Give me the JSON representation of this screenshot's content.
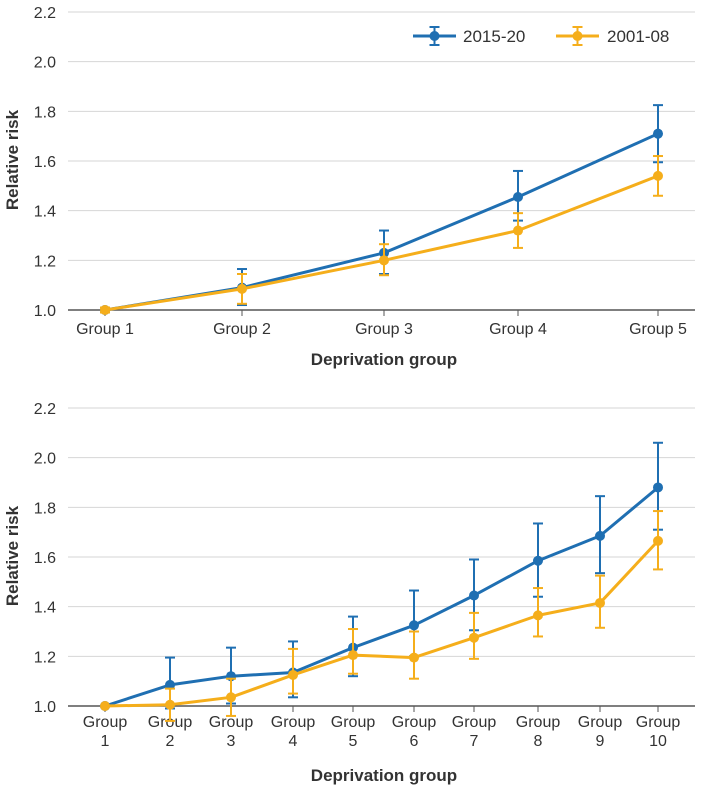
{
  "chart_data": [
    {
      "type": "line",
      "title": "",
      "xlabel": "Deprivation group",
      "ylabel": "Relative risk",
      "ylim": [
        1.0,
        2.2
      ],
      "yticks": [
        "1.0",
        "1.2",
        "1.4",
        "1.6",
        "1.8",
        "2.0",
        "2.2"
      ],
      "categories": [
        [
          "Group 1"
        ],
        [
          "Group 2"
        ],
        [
          "Group 3"
        ],
        [
          "Group 4"
        ],
        [
          "Group 5"
        ]
      ],
      "legend": "top-right",
      "series": [
        {
          "name": "2015-20",
          "color": "#1f6fb2",
          "values": [
            1.0,
            1.09,
            1.23,
            1.455,
            1.71
          ],
          "lower": [
            1.0,
            1.02,
            1.145,
            1.36,
            1.595
          ],
          "upper": [
            1.0,
            1.165,
            1.32,
            1.56,
            1.825
          ]
        },
        {
          "name": "2001-08",
          "color": "#f5ae1b",
          "values": [
            1.0,
            1.085,
            1.2,
            1.32,
            1.54
          ],
          "lower": [
            0.99,
            1.025,
            1.14,
            1.25,
            1.46
          ],
          "upper": [
            1.01,
            1.145,
            1.265,
            1.39,
            1.62
          ]
        }
      ]
    },
    {
      "type": "line",
      "title": "",
      "xlabel": "Deprivation group",
      "ylabel": "Relative risk",
      "ylim": [
        1.0,
        2.2
      ],
      "yticks": [
        "1.0",
        "1.2",
        "1.4",
        "1.6",
        "1.8",
        "2.0",
        "2.2"
      ],
      "categories": [
        [
          "Group",
          "1"
        ],
        [
          "Group",
          "2"
        ],
        [
          "Group",
          "3"
        ],
        [
          "Group",
          "4"
        ],
        [
          "Group",
          "5"
        ],
        [
          "Group",
          "6"
        ],
        [
          "Group",
          "7"
        ],
        [
          "Group",
          "8"
        ],
        [
          "Group",
          "9"
        ],
        [
          "Group",
          "10"
        ]
      ],
      "legend": "none",
      "series": [
        {
          "name": "2015-20",
          "color": "#1f6fb2",
          "values": [
            1.0,
            1.085,
            1.12,
            1.135,
            1.235,
            1.325,
            1.445,
            1.585,
            1.685,
            1.88
          ],
          "lower": [
            1.0,
            0.99,
            1.01,
            1.035,
            1.12,
            1.2,
            1.305,
            1.44,
            1.535,
            1.71
          ],
          "upper": [
            1.0,
            1.195,
            1.235,
            1.26,
            1.36,
            1.465,
            1.59,
            1.735,
            1.845,
            2.06
          ]
        },
        {
          "name": "2001-08",
          "color": "#f5ae1b",
          "values": [
            1.0,
            1.005,
            1.035,
            1.125,
            1.205,
            1.195,
            1.275,
            1.365,
            1.415,
            1.665
          ],
          "lower": [
            1.0,
            0.94,
            0.96,
            1.05,
            1.13,
            1.11,
            1.19,
            1.28,
            1.315,
            1.55
          ],
          "upper": [
            1.0,
            1.07,
            1.11,
            1.23,
            1.31,
            1.3,
            1.375,
            1.475,
            1.525,
            1.785
          ]
        }
      ]
    }
  ]
}
